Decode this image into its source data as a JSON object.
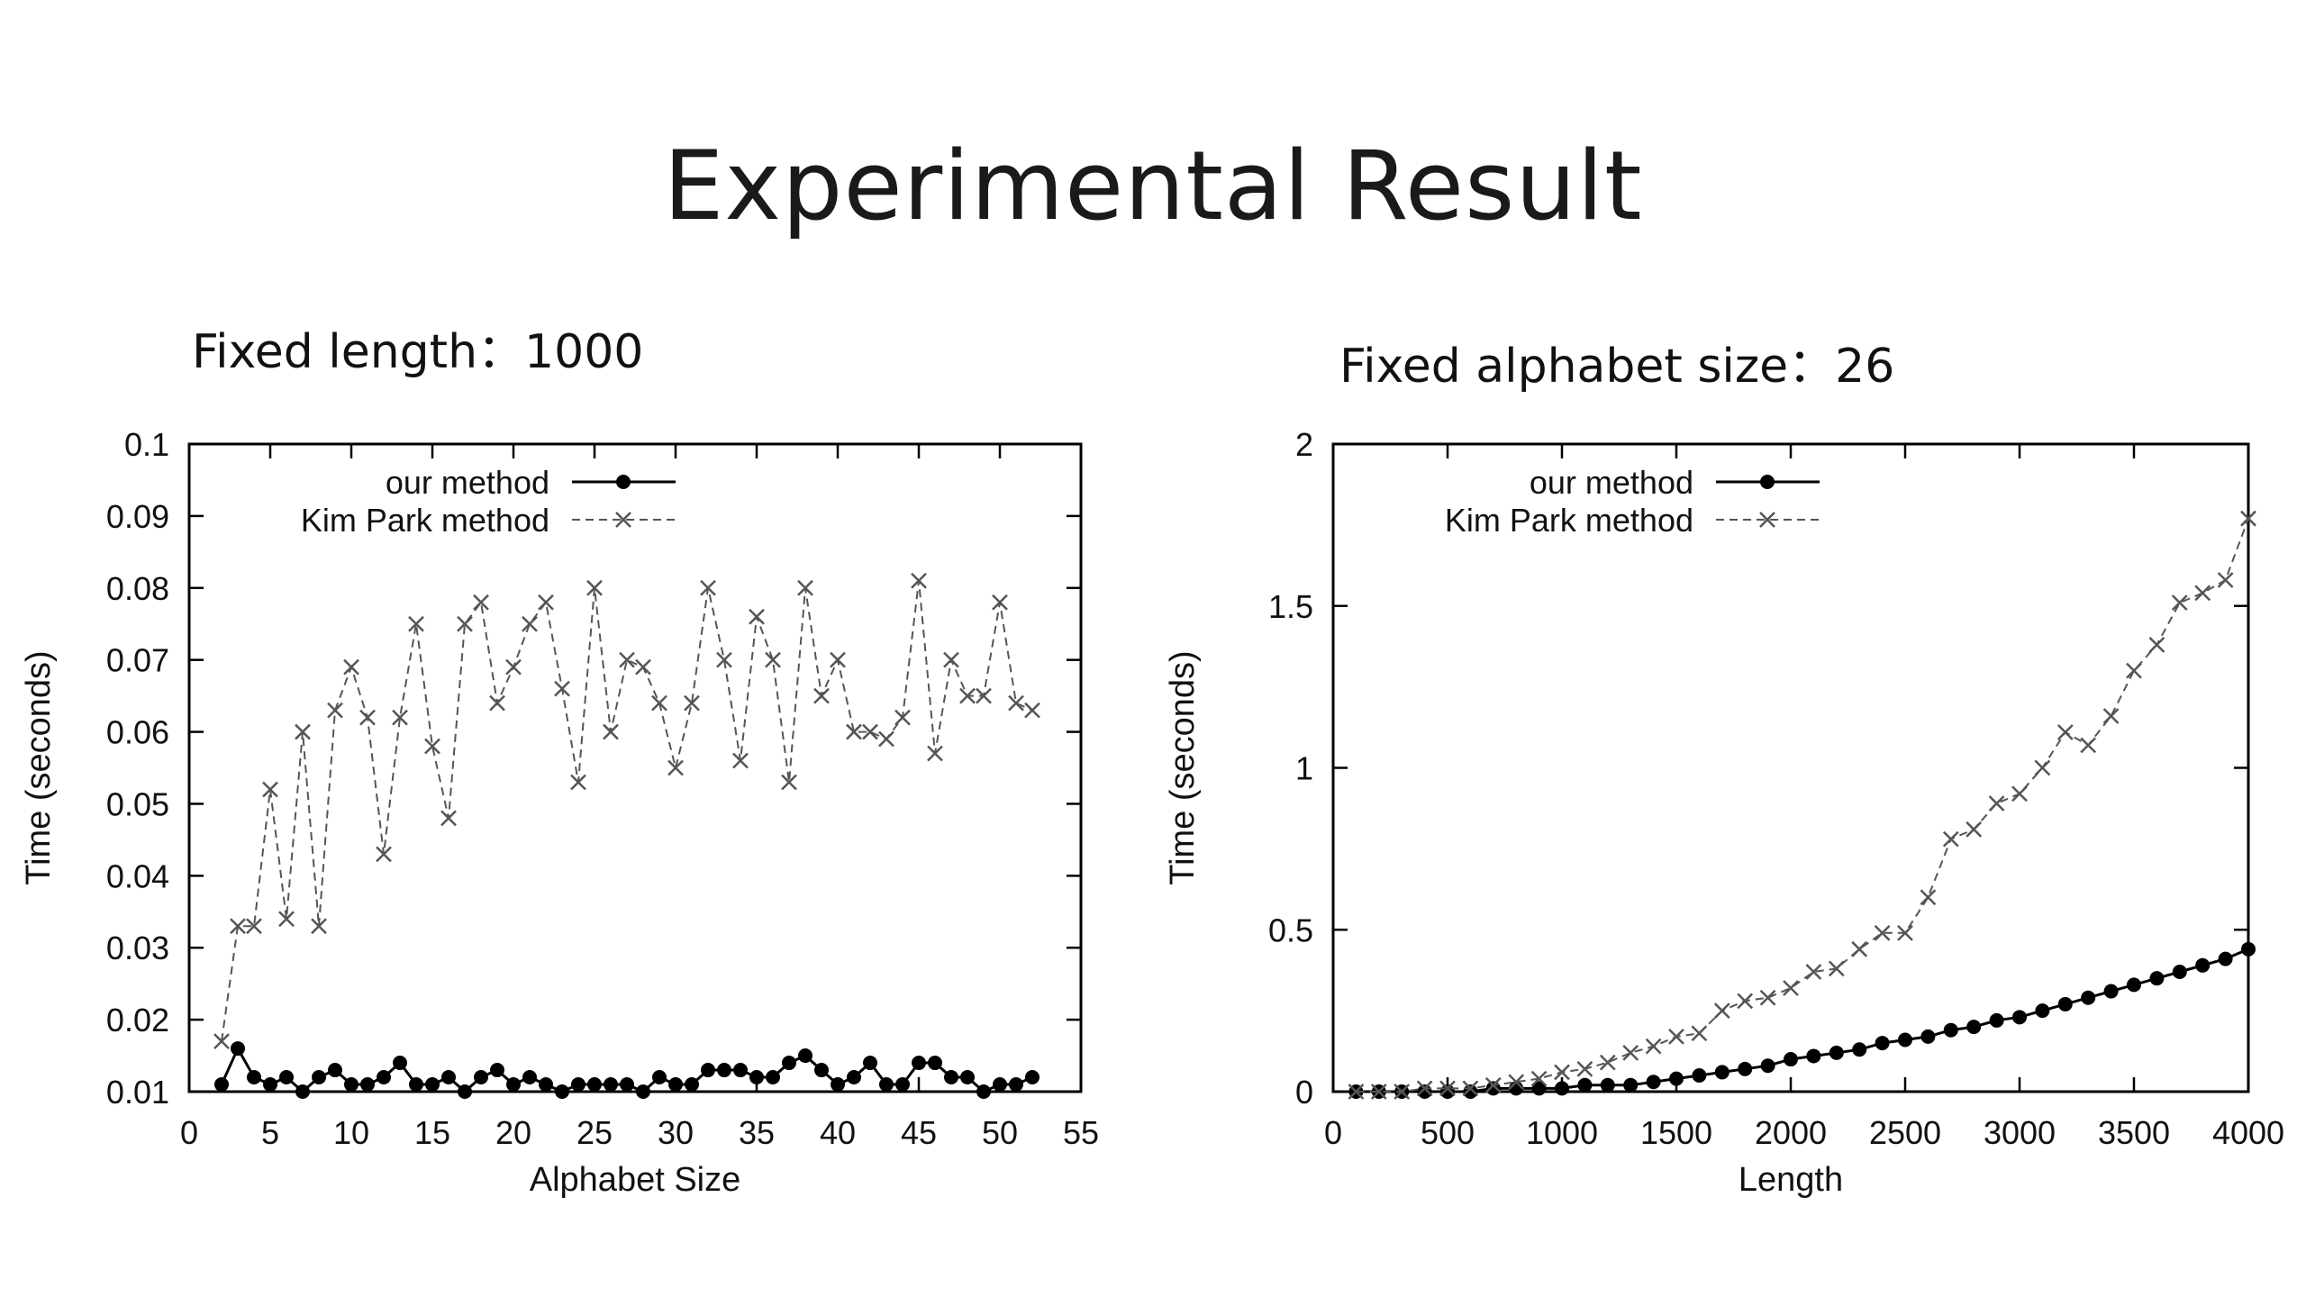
{
  "slide": {
    "title": "Experimental Result",
    "left_subtitle": "Fixed length：1000",
    "right_subtitle": "Fixed alphabet size：26"
  },
  "chart_data": [
    {
      "type": "line",
      "xlabel": "Alphabet Size",
      "ylabel": "Time (seconds)",
      "xlim": [
        0,
        55
      ],
      "ylim": [
        0.01,
        0.1
      ],
      "xticks": [
        0,
        5,
        10,
        15,
        20,
        25,
        30,
        35,
        40,
        45,
        50,
        55
      ],
      "yticks": [
        0.01,
        0.02,
        0.03,
        0.04,
        0.05,
        0.06,
        0.07,
        0.08,
        0.09,
        0.1
      ],
      "ytick_labels": [
        "0.01",
        "0.02",
        "0.03",
        "0.04",
        "0.05",
        "0.06",
        "0.07",
        "0.08",
        "0.09",
        "0.1"
      ],
      "grid": false,
      "legend_position": "top-left",
      "series": [
        {
          "name": "our method",
          "style": "solid-dot",
          "color": "#000000",
          "x": [
            2,
            3,
            4,
            5,
            6,
            7,
            8,
            9,
            10,
            11,
            12,
            13,
            14,
            15,
            16,
            17,
            18,
            19,
            20,
            21,
            22,
            23,
            24,
            25,
            26,
            27,
            28,
            29,
            30,
            31,
            32,
            33,
            34,
            35,
            36,
            37,
            38,
            39,
            40,
            41,
            42,
            43,
            44,
            45,
            46,
            47,
            48,
            49,
            50,
            51,
            52
          ],
          "y": [
            0.011,
            0.016,
            0.012,
            0.011,
            0.012,
            0.01,
            0.012,
            0.013,
            0.011,
            0.011,
            0.012,
            0.014,
            0.011,
            0.011,
            0.012,
            0.01,
            0.012,
            0.013,
            0.011,
            0.012,
            0.011,
            0.01,
            0.011,
            0.011,
            0.011,
            0.011,
            0.01,
            0.012,
            0.011,
            0.011,
            0.013,
            0.013,
            0.013,
            0.012,
            0.012,
            0.014,
            0.015,
            0.013,
            0.011,
            0.012,
            0.014,
            0.011,
            0.011,
            0.014,
            0.014,
            0.012,
            0.012,
            0.01,
            0.011,
            0.011,
            0.012
          ]
        },
        {
          "name": "Kim Park method",
          "style": "dashed-cross",
          "color": "#555555",
          "x": [
            2,
            3,
            4,
            5,
            6,
            7,
            8,
            9,
            10,
            11,
            12,
            13,
            14,
            15,
            16,
            17,
            18,
            19,
            20,
            21,
            22,
            23,
            24,
            25,
            26,
            27,
            28,
            29,
            30,
            31,
            32,
            33,
            34,
            35,
            36,
            37,
            38,
            39,
            40,
            41,
            42,
            43,
            44,
            45,
            46,
            47,
            48,
            49,
            50,
            51,
            52
          ],
          "y": [
            0.017,
            0.033,
            0.033,
            0.052,
            0.034,
            0.06,
            0.033,
            0.063,
            0.069,
            0.062,
            0.043,
            0.062,
            0.075,
            0.058,
            0.048,
            0.075,
            0.078,
            0.064,
            0.069,
            0.075,
            0.078,
            0.066,
            0.053,
            0.08,
            0.06,
            0.07,
            0.069,
            0.064,
            0.055,
            0.064,
            0.08,
            0.07,
            0.056,
            0.076,
            0.07,
            0.053,
            0.08,
            0.065,
            0.07,
            0.06,
            0.06,
            0.059,
            0.062,
            0.081,
            0.057,
            0.07,
            0.065,
            0.065,
            0.078,
            0.064,
            0.063
          ]
        }
      ]
    },
    {
      "type": "line",
      "xlabel": "Length",
      "ylabel": "Time (seconds)",
      "xlim": [
        0,
        4000
      ],
      "ylim": [
        0,
        2
      ],
      "xticks": [
        0,
        500,
        1000,
        1500,
        2000,
        2500,
        3000,
        3500,
        4000
      ],
      "yticks": [
        0,
        0.5,
        1,
        1.5,
        2
      ],
      "ytick_labels": [
        "0",
        "0.5",
        "1",
        "1.5",
        "2"
      ],
      "grid": false,
      "legend_position": "top-left",
      "series": [
        {
          "name": "our method",
          "style": "solid-dot",
          "color": "#000000",
          "x": [
            100,
            200,
            300,
            400,
            500,
            600,
            700,
            800,
            900,
            1000,
            1100,
            1200,
            1300,
            1400,
            1500,
            1600,
            1700,
            1800,
            1900,
            2000,
            2100,
            2200,
            2300,
            2400,
            2500,
            2600,
            2700,
            2800,
            2900,
            3000,
            3100,
            3200,
            3300,
            3400,
            3500,
            3600,
            3700,
            3800,
            3900,
            4000
          ],
          "y": [
            0.0,
            0.0,
            0.0,
            0.0,
            0.0,
            0.0,
            0.01,
            0.01,
            0.01,
            0.01,
            0.02,
            0.02,
            0.02,
            0.03,
            0.04,
            0.05,
            0.06,
            0.07,
            0.08,
            0.1,
            0.11,
            0.12,
            0.13,
            0.15,
            0.16,
            0.17,
            0.19,
            0.2,
            0.22,
            0.23,
            0.25,
            0.27,
            0.29,
            0.31,
            0.33,
            0.35,
            0.37,
            0.39,
            0.41,
            0.44
          ]
        },
        {
          "name": "Kim Park method",
          "style": "dashed-cross",
          "color": "#555555",
          "x": [
            100,
            200,
            300,
            400,
            500,
            600,
            700,
            800,
            900,
            1000,
            1100,
            1200,
            1300,
            1400,
            1500,
            1600,
            1700,
            1800,
            1900,
            2000,
            2100,
            2200,
            2300,
            2400,
            2500,
            2600,
            2700,
            2800,
            2900,
            3000,
            3100,
            3200,
            3300,
            3400,
            3500,
            3600,
            3700,
            3800,
            3900,
            4000
          ],
          "y": [
            0.0,
            0.0,
            0.0,
            0.01,
            0.01,
            0.01,
            0.02,
            0.03,
            0.04,
            0.06,
            0.07,
            0.09,
            0.12,
            0.14,
            0.17,
            0.18,
            0.25,
            0.28,
            0.29,
            0.32,
            0.37,
            0.38,
            0.44,
            0.49,
            0.49,
            0.6,
            0.78,
            0.81,
            0.89,
            0.92,
            1.0,
            1.11,
            1.07,
            1.16,
            1.3,
            1.38,
            1.51,
            1.54,
            1.58,
            1.77
          ]
        }
      ]
    }
  ]
}
